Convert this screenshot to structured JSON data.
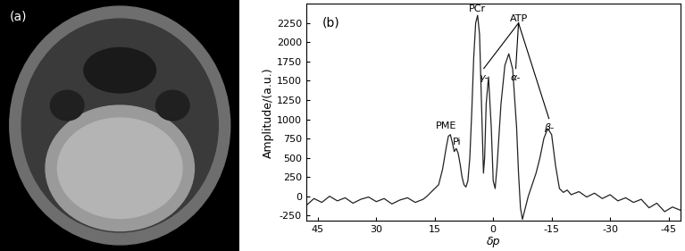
{
  "chart_data": [
    {
      "type": "image",
      "annotations": [
        {
          "text": "(a)"
        }
      ]
    },
    {
      "type": "line",
      "xlabel": "δp",
      "ylabel": "Amplitude/(a.u.)",
      "color": "#222222",
      "grid": false,
      "xlim": [
        48,
        -48
      ],
      "xticks": [
        45,
        30,
        15,
        0,
        -15,
        -30,
        -45
      ],
      "ylim": [
        -320,
        2500
      ],
      "yticks": [
        -250,
        0,
        250,
        500,
        750,
        1000,
        1250,
        1500,
        1750,
        2000,
        2250
      ],
      "x": [
        48,
        46,
        44,
        42,
        40,
        38,
        36,
        34,
        32,
        30,
        28,
        26,
        24,
        22,
        20,
        18,
        17,
        16,
        15,
        14,
        13,
        12,
        11.5,
        11,
        10.5,
        10,
        9.5,
        9,
        8.5,
        8,
        7.5,
        7,
        6.5,
        6,
        5.5,
        5,
        4.5,
        4,
        3.5,
        3,
        2.5,
        2.2,
        1.8,
        1.2,
        0.5,
        0,
        -0.5,
        -1,
        -2,
        -3,
        -4,
        -5,
        -6,
        -6.5,
        -7,
        -7.5,
        -8,
        -9,
        -10,
        -11,
        -12,
        -13,
        -14,
        -15,
        -16,
        -17,
        -18,
        -19,
        -20,
        -22,
        -24,
        -26,
        -28,
        -30,
        -32,
        -34,
        -36,
        -38,
        -40,
        -42,
        -44,
        -46,
        -48
      ],
      "values": [
        -120,
        -30,
        -80,
        0,
        -60,
        -20,
        -90,
        -40,
        -10,
        -70,
        -30,
        -100,
        -50,
        -20,
        -80,
        -40,
        0,
        50,
        100,
        150,
        350,
        650,
        780,
        800,
        700,
        580,
        620,
        560,
        420,
        250,
        150,
        120,
        200,
        500,
        1100,
        1800,
        2250,
        2350,
        2100,
        1200,
        300,
        500,
        1200,
        1550,
        900,
        200,
        100,
        400,
        1200,
        1700,
        1850,
        1650,
        900,
        300,
        -150,
        -300,
        -200,
        0,
        150,
        300,
        500,
        750,
        880,
        800,
        400,
        100,
        50,
        80,
        20,
        60,
        -10,
        40,
        -30,
        20,
        -60,
        -20,
        -80,
        -40,
        -150,
        -90,
        -200,
        -140,
        -180
      ],
      "annotations": [
        {
          "text": "(b)",
          "x": 44,
          "y": 2250
        },
        {
          "text": "PME",
          "x": 12,
          "y": 850
        },
        {
          "text": "Pi",
          "x": 9.3,
          "y": 650
        },
        {
          "text": "PCr",
          "x": 4,
          "y": 2380
        },
        {
          "text": "ATP",
          "x": -6.5,
          "y": 2250,
          "children": [
            {
              "text": "γ-",
              "x": 2.4,
              "y": 1600
            },
            {
              "text": "α-",
              "x": -5.8,
              "y": 1600
            },
            {
              "text": "β-",
              "x": -14.3,
              "y": 950
            }
          ]
        }
      ]
    }
  ]
}
